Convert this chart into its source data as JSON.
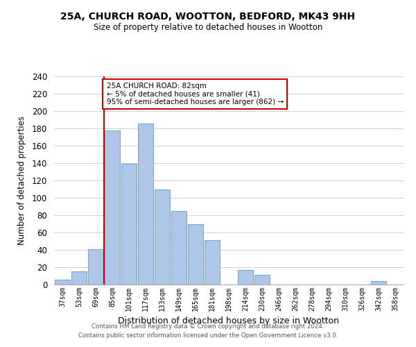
{
  "title1": "25A, CHURCH ROAD, WOOTTON, BEDFORD, MK43 9HH",
  "title2": "Size of property relative to detached houses in Wootton",
  "xlabel": "Distribution of detached houses by size in Wootton",
  "ylabel": "Number of detached properties",
  "bar_labels": [
    "37sqm",
    "53sqm",
    "69sqm",
    "85sqm",
    "101sqm",
    "117sqm",
    "133sqm",
    "149sqm",
    "165sqm",
    "181sqm",
    "198sqm",
    "214sqm",
    "230sqm",
    "246sqm",
    "262sqm",
    "278sqm",
    "294sqm",
    "310sqm",
    "326sqm",
    "342sqm",
    "358sqm"
  ],
  "bar_values": [
    6,
    15,
    41,
    178,
    139,
    186,
    110,
    85,
    70,
    51,
    0,
    17,
    11,
    0,
    0,
    0,
    0,
    0,
    0,
    4,
    0
  ],
  "bar_color": "#aec6e8",
  "bar_edge_color": "#6aaed6",
  "vline_color": "#cc0000",
  "vline_x_idx": 3,
  "annotation_title": "25A CHURCH ROAD: 82sqm",
  "annotation_line1": "← 5% of detached houses are smaller (41)",
  "annotation_line2": "95% of semi-detached houses are larger (862) →",
  "annotation_box_color": "#ffffff",
  "annotation_box_edge": "#cc0000",
  "ylim": [
    0,
    240
  ],
  "yticks": [
    0,
    20,
    40,
    60,
    80,
    100,
    120,
    140,
    160,
    180,
    200,
    220,
    240
  ],
  "footer1": "Contains HM Land Registry data © Crown copyright and database right 2024.",
  "footer2": "Contains public sector information licensed under the Open Government Licence v3.0.",
  "bg_color": "#ffffff",
  "grid_color": "#d0d0d0"
}
